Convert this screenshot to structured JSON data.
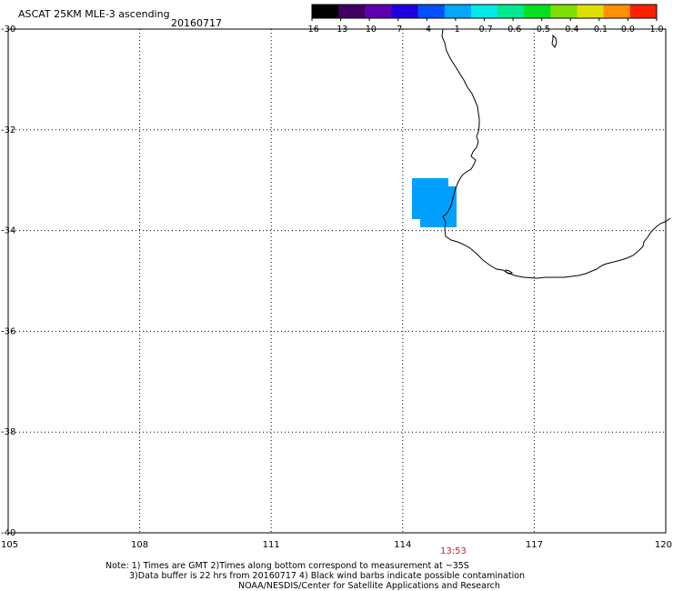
{
  "header": {
    "title": "ASCAT 25KM MLE-3 ascending",
    "date": "20160717"
  },
  "colorbar": {
    "labels": [
      "-16",
      "-13",
      "-10",
      "-7",
      "-4",
      "-1",
      "-0.7",
      "-0.6",
      "-0.5",
      "-0.4",
      "-0.1",
      "0.0",
      "1.0"
    ],
    "colors": [
      "#000000",
      "#400060",
      "#6000b0",
      "#2000e0",
      "#0050ff",
      "#00a8ff",
      "#00e8e8",
      "#00e890",
      "#00e020",
      "#80e000",
      "#e0e000",
      "#ff9000",
      "#ff2000"
    ]
  },
  "map": {
    "lon_ticks": [
      "105",
      "108",
      "111",
      "114",
      "117",
      "120"
    ],
    "lat_ticks": [
      "-30",
      "-32",
      "-34",
      "-36",
      "-38",
      "-40"
    ],
    "lon_range": [
      105,
      120
    ],
    "lat_range": [
      -40,
      -30
    ],
    "gridlines": true,
    "coast_color": "#000000",
    "swath_time": "13:53",
    "swath_time_color": "#cc2222",
    "data_color": "#00a0ff"
  },
  "notes": {
    "line1": "Note: 1) Times are GMT 2)Times along bottom correspond to measurement at ~35S",
    "line2": "3)Data buffer is 22 hrs from 20160717 4) Black wind barbs indicate possible contamination",
    "line3": "NOAA/NESDIS/Center for Satellite Applications and Research"
  }
}
